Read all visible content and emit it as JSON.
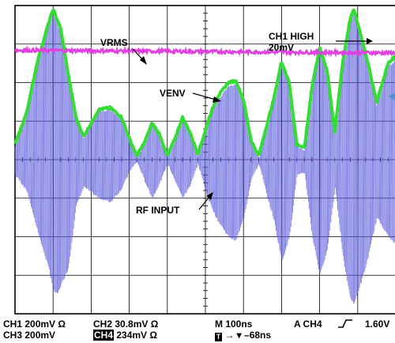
{
  "annotations": {
    "vrms": "VRMS",
    "ch1_high_line1": "CH1 HIGH",
    "ch1_high_line2": "20mV",
    "venv": "VENV",
    "rf_input": "RF INPUT"
  },
  "footer": {
    "ch1": "CH1  200mV Ω",
    "ch3": "CH3  200mV",
    "ch2": "CH2  30.8mV Ω",
    "ch4_tag": "CH4",
    "ch4_value": "234mV Ω",
    "timebase": "M 100ns",
    "trigger_source": "A CH4",
    "trigger_slope_icon": "rising-edge-icon",
    "trigger_level": "1.60V",
    "trigger_marker_tag": "T",
    "trigger_position": "→ ▾ –68ns"
  },
  "colors": {
    "rf_input": "#5b5bdc",
    "venv": "#33dd33",
    "vrms": "#e040e0",
    "grid": "#000000",
    "background": "#ffffff"
  },
  "chart_data": {
    "type": "line",
    "title": "",
    "xlabel": "",
    "ylabel": "",
    "grid": true,
    "divisions": {
      "x": 10,
      "y": 8
    },
    "x_unit": "div (100ns/div)",
    "xlim": [
      0,
      10
    ],
    "ylim": [
      -4,
      4
    ],
    "series": [
      {
        "name": "VRMS",
        "style": "noisy-flat",
        "x": [
          0,
          10
        ],
        "values": [
          2.84,
          2.77
        ]
      },
      {
        "name": "VENV",
        "style": "envelope",
        "x": [
          0,
          0.3,
          0.6,
          0.9,
          1.0,
          1.2,
          1.4,
          1.6,
          1.8,
          2.0,
          2.2,
          2.5,
          2.8,
          3.0,
          3.2,
          3.4,
          3.6,
          3.8,
          4.0,
          4.2,
          4.4,
          4.6,
          4.8,
          5.0,
          5.1,
          5.3,
          5.6,
          5.8,
          6.0,
          6.2,
          6.4,
          6.6,
          6.8,
          7.0,
          7.2,
          7.4,
          7.6,
          7.8,
          8.0,
          8.2,
          8.4,
          8.6,
          8.8,
          8.9,
          9.2,
          9.5,
          9.8,
          10.0
        ],
        "values": [
          0.4,
          1.2,
          2.6,
          3.6,
          3.9,
          3.4,
          2.2,
          1.1,
          0.6,
          0.95,
          1.3,
          1.35,
          1.1,
          0.55,
          0.1,
          0.45,
          0.95,
          0.65,
          0.1,
          0.55,
          1.1,
          0.7,
          0.15,
          0.75,
          1.1,
          1.6,
          2.0,
          2.05,
          1.55,
          0.5,
          0.1,
          0.85,
          1.6,
          2.55,
          2.0,
          0.4,
          0.3,
          1.9,
          2.9,
          2.3,
          0.7,
          2.5,
          3.65,
          3.9,
          2.8,
          1.5,
          2.5,
          2.7
        ]
      },
      {
        "name": "RF INPUT",
        "style": "dense-carrier",
        "upper_x": [
          0,
          0.3,
          0.6,
          0.9,
          1.0,
          1.2,
          1.4,
          1.6,
          1.8,
          2.0,
          2.2,
          2.5,
          2.8,
          3.0,
          3.2,
          3.4,
          3.6,
          3.8,
          4.0,
          4.2,
          4.4,
          4.6,
          4.8,
          5.0,
          5.1,
          5.3,
          5.6,
          5.8,
          6.0,
          6.2,
          6.4,
          6.6,
          6.8,
          7.0,
          7.2,
          7.4,
          7.6,
          7.8,
          8.0,
          8.2,
          8.4,
          8.6,
          8.8,
          8.9,
          9.2,
          9.5,
          9.8,
          10.0
        ],
        "upper": [
          0.35,
          1.1,
          2.5,
          3.5,
          3.8,
          3.3,
          2.1,
          1.0,
          0.55,
          0.9,
          1.25,
          1.3,
          1.05,
          0.5,
          0.05,
          0.4,
          0.9,
          0.6,
          0.05,
          0.5,
          1.05,
          0.65,
          0.1,
          0.7,
          1.05,
          1.5,
          1.9,
          1.95,
          1.45,
          0.45,
          0.05,
          0.8,
          1.5,
          2.45,
          1.9,
          0.35,
          0.25,
          1.8,
          2.8,
          2.2,
          0.65,
          2.4,
          3.55,
          3.8,
          2.7,
          1.4,
          2.4,
          2.6
        ],
        "lower_x": [
          0,
          0.3,
          0.6,
          0.9,
          1.0,
          1.1,
          1.4,
          1.6,
          1.8,
          2.0,
          2.2,
          2.5,
          2.8,
          3.0,
          3.2,
          3.4,
          3.6,
          3.8,
          4.0,
          4.2,
          4.4,
          4.6,
          4.8,
          5.0,
          5.1,
          5.3,
          5.6,
          5.8,
          6.0,
          6.2,
          6.4,
          6.6,
          6.8,
          7.0,
          7.2,
          7.4,
          7.6,
          7.8,
          8.0,
          8.2,
          8.4,
          8.6,
          8.8,
          8.9,
          9.2,
          9.5,
          9.8,
          10.0
        ],
        "lower": [
          -0.4,
          -0.8,
          -1.9,
          -2.9,
          -3.4,
          -3.5,
          -2.8,
          -1.2,
          -0.7,
          -0.85,
          -1.0,
          -1.1,
          -0.75,
          -0.3,
          -0.05,
          -0.55,
          -1.0,
          -0.6,
          -0.1,
          -0.55,
          -1.0,
          -0.65,
          -0.1,
          -0.8,
          -1.1,
          -1.55,
          -2.0,
          -2.1,
          -1.5,
          -0.5,
          -0.1,
          -0.9,
          -1.6,
          -2.65,
          -2.0,
          -0.4,
          -0.35,
          -2.0,
          -3.0,
          -2.3,
          -0.7,
          -2.5,
          -3.6,
          -3.75,
          -2.8,
          -1.5,
          -2.0,
          -2.2
        ]
      }
    ]
  }
}
